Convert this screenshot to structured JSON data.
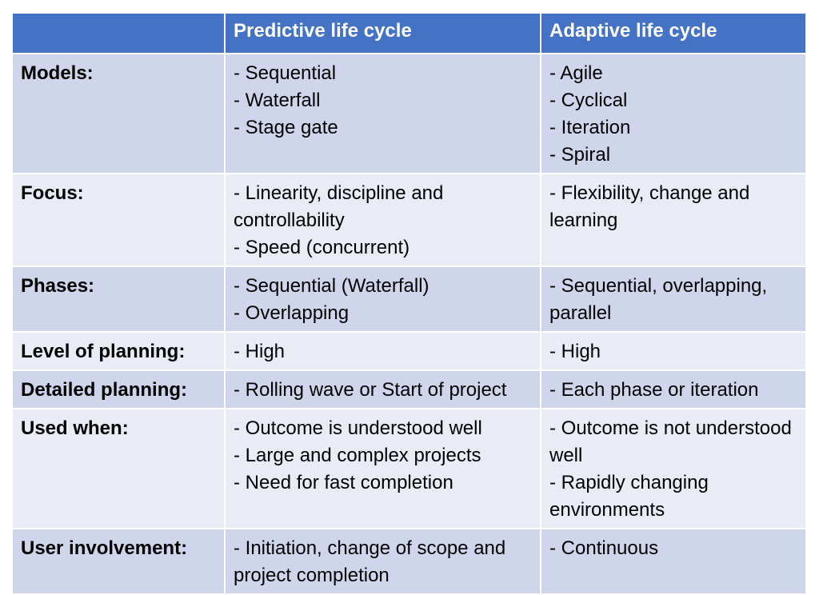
{
  "table": {
    "headers": [
      "",
      "Predictive life cycle",
      "Adaptive life cycle"
    ],
    "rows": [
      {
        "label": "Models:",
        "predictive": [
          "- Sequential",
          "- Waterfall",
          "- Stage gate"
        ],
        "adaptive": [
          "- Agile",
          "- Cyclical",
          "- Iteration",
          "- Spiral"
        ]
      },
      {
        "label": "Focus:",
        "predictive": [
          "- Linearity, discipline and controllability",
          "- Speed (concurrent)"
        ],
        "adaptive": [
          "- Flexibility, change and learning"
        ]
      },
      {
        "label": "Phases:",
        "predictive": [
          "- Sequential (Waterfall)",
          "- Overlapping"
        ],
        "adaptive": [
          "- Sequential, overlapping, parallel"
        ]
      },
      {
        "label": "Level of planning:",
        "predictive": [
          "- High"
        ],
        "adaptive": [
          "- High"
        ]
      },
      {
        "label": "Detailed planning:",
        "predictive": [
          "- Rolling wave or Start of project"
        ],
        "adaptive": [
          "- Each phase or iteration"
        ]
      },
      {
        "label": "Used when:",
        "predictive": [
          "- Outcome is understood well",
          "- Large and complex projects",
          "- Need for fast completion"
        ],
        "adaptive": [
          "- Outcome is not understood well",
          "- Rapidly changing environments"
        ]
      },
      {
        "label": "User involvement:",
        "predictive": [
          "- Initiation, change of scope and project completion"
        ],
        "adaptive": [
          "- Continuous"
        ]
      }
    ]
  },
  "colors": {
    "header_bg": "#4472c4",
    "header_text": "#ffffff",
    "row_dark": "#cfd5ea",
    "row_light": "#e9ebf5",
    "border": "#ffffff"
  }
}
